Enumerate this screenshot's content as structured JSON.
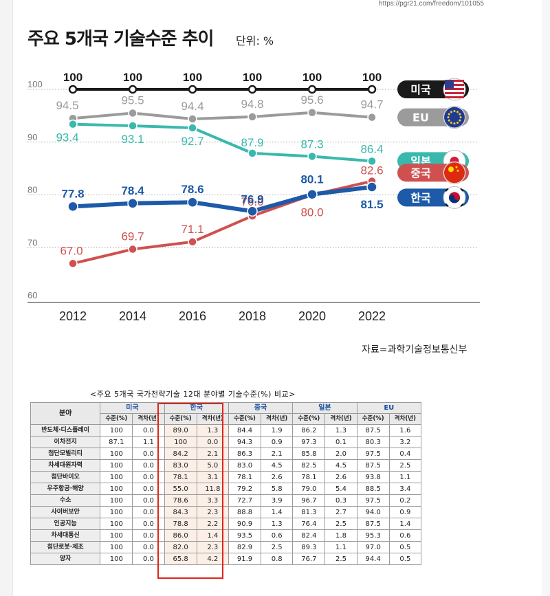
{
  "url": "https://pgr21.com/freedom/101055",
  "title": "주요 5개국 기술수준 추이",
  "unit_label": "단위: %",
  "source": "자료=과학기술정보통신부",
  "colors": {
    "us": "#1a1a1a",
    "eu": "#9b9b9b",
    "japan": "#39b9ad",
    "china": "#d0504f",
    "korea": "#1d5aa8"
  },
  "chart_data": {
    "type": "line",
    "title": "주요 5개국 기술수준 추이",
    "x": [
      "2012",
      "2014",
      "2016",
      "2018",
      "2020",
      "2022"
    ],
    "ylim": [
      60,
      100
    ],
    "yticks": [
      "60",
      "70",
      "80",
      "90",
      "100"
    ],
    "grid": true,
    "legend": "right",
    "series": [
      {
        "name": "미국",
        "key": "us",
        "icon": "us-flag-icon",
        "values": [
          100,
          100,
          100,
          100,
          100,
          100
        ],
        "labels": [
          "100",
          "100",
          "100",
          "100",
          "100",
          "100"
        ]
      },
      {
        "name": "EU",
        "key": "eu",
        "icon": "eu-flag-icon",
        "values": [
          94.5,
          95.5,
          94.4,
          94.8,
          95.6,
          94.7
        ],
        "labels": [
          "94.5",
          "95.5",
          "94.4",
          "94.8",
          "95.6",
          "94.7"
        ]
      },
      {
        "name": "일본",
        "key": "japan",
        "icon": "japan-flag-icon",
        "values": [
          93.4,
          93.1,
          92.7,
          87.9,
          87.3,
          86.4
        ],
        "labels": [
          "93.4",
          "93.1",
          "92.7",
          "87.9",
          "87.3",
          "86.4"
        ]
      },
      {
        "name": "중국",
        "key": "china",
        "icon": "china-flag-icon",
        "values": [
          67.0,
          69.7,
          71.1,
          76.0,
          80.0,
          82.6
        ],
        "labels": [
          "67.0",
          "69.7",
          "71.1",
          "76.0",
          "80.0",
          "82.6"
        ]
      },
      {
        "name": "한국",
        "key": "korea",
        "icon": "korea-flag-icon",
        "values": [
          77.8,
          78.4,
          78.6,
          76.9,
          80.1,
          81.5
        ],
        "labels": [
          "77.8",
          "78.4",
          "78.6",
          "76.9",
          "80.1",
          "81.5"
        ]
      }
    ]
  },
  "table": {
    "caption": "<주요 5개국 국가전략기술 12대 분야별 기술수준(%) 비교>",
    "field_header": "분야",
    "countries": [
      "미국",
      "한국",
      "중국",
      "일본",
      "EU"
    ],
    "sub_headers": [
      "수준(%)",
      "격차(년)"
    ],
    "rows": [
      {
        "field": "반도체·디스플레이",
        "cells": [
          "100",
          "0.0",
          "89.0",
          "1.3",
          "84.4",
          "1.9",
          "86.2",
          "1.3",
          "87.5",
          "1.6"
        ]
      },
      {
        "field": "이차전지",
        "cells": [
          "87.1",
          "1.1",
          "100",
          "0.0",
          "94.3",
          "0.9",
          "97.3",
          "0.1",
          "80.3",
          "3.2"
        ]
      },
      {
        "field": "첨단모빌리티",
        "cells": [
          "100",
          "0.0",
          "84.2",
          "2.1",
          "86.3",
          "2.1",
          "85.8",
          "2.0",
          "97.5",
          "0.4"
        ]
      },
      {
        "field": "차세대원자력",
        "cells": [
          "100",
          "0.0",
          "83.0",
          "5.0",
          "83.0",
          "4.5",
          "82.5",
          "4.5",
          "87.5",
          "2.5"
        ]
      },
      {
        "field": "첨단바이오",
        "cells": [
          "100",
          "0.0",
          "78.1",
          "3.1",
          "78.1",
          "2.6",
          "78.1",
          "2.6",
          "93.8",
          "1.1"
        ]
      },
      {
        "field": "우주항공·해양",
        "cells": [
          "100",
          "0.0",
          "55.0",
          "11.8",
          "79.2",
          "5.8",
          "79.0",
          "5.4",
          "88.5",
          "3.4"
        ]
      },
      {
        "field": "수소",
        "cells": [
          "100",
          "0.0",
          "78.6",
          "3.3",
          "72.7",
          "3.9",
          "96.7",
          "0.3",
          "97.5",
          "0.2"
        ]
      },
      {
        "field": "사이버보안",
        "cells": [
          "100",
          "0.0",
          "84.3",
          "2.3",
          "88.8",
          "1.4",
          "81.3",
          "2.7",
          "94.0",
          "0.9"
        ]
      },
      {
        "field": "인공지능",
        "cells": [
          "100",
          "0.0",
          "78.8",
          "2.2",
          "90.9",
          "1.3",
          "76.4",
          "2.5",
          "87.5",
          "1.4"
        ]
      },
      {
        "field": "차세대통신",
        "cells": [
          "100",
          "0.0",
          "86.0",
          "1.4",
          "93.5",
          "0.6",
          "82.4",
          "1.8",
          "95.3",
          "0.6"
        ]
      },
      {
        "field": "첨단로봇·제조",
        "cells": [
          "100",
          "0.0",
          "82.0",
          "2.3",
          "82.9",
          "2.5",
          "89.3",
          "1.1",
          "97.0",
          "0.5"
        ]
      },
      {
        "field": "양자",
        "cells": [
          "100",
          "0.0",
          "65.8",
          "4.2",
          "91.9",
          "0.8",
          "76.7",
          "2.5",
          "94.4",
          "0.5"
        ]
      }
    ]
  }
}
